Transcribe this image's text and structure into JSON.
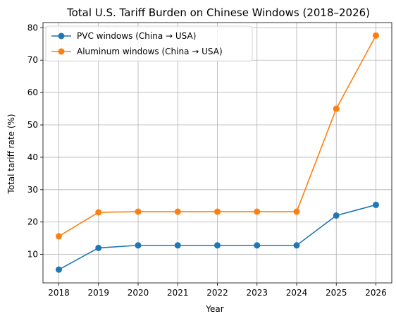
{
  "chart_data": {
    "type": "line",
    "title": "Total U.S. Tariff Burden on Chinese Windows (2018–2026)",
    "xlabel": "Year",
    "ylabel": "Total tariff rate (%)",
    "x": [
      2018,
      2019,
      2020,
      2021,
      2022,
      2023,
      2024,
      2025,
      2026
    ],
    "x_tick_labels": [
      "2018",
      "2019",
      "2020",
      "2021",
      "2022",
      "2023",
      "2024",
      "2025",
      "2026"
    ],
    "y_ticks": [
      10,
      20,
      30,
      40,
      50,
      60,
      70,
      80
    ],
    "y_tick_labels": [
      "10",
      "20",
      "30",
      "40",
      "50",
      "60",
      "70",
      "80"
    ],
    "ylim": [
      1.2,
      81.6
    ],
    "xlim": [
      2017.6,
      2026.4
    ],
    "grid": true,
    "legend_position": "upper-left",
    "series": [
      {
        "name": "PVC windows (China → USA)",
        "color": "#1f77b4",
        "values": [
          5.3,
          12.0,
          12.8,
          12.8,
          12.8,
          12.8,
          12.8,
          22.0,
          25.3
        ]
      },
      {
        "name": "Aluminum windows (China → USA)",
        "color": "#ff7f0e",
        "values": [
          15.6,
          23.0,
          23.2,
          23.2,
          23.2,
          23.2,
          23.2,
          55.0,
          77.6
        ]
      }
    ]
  }
}
